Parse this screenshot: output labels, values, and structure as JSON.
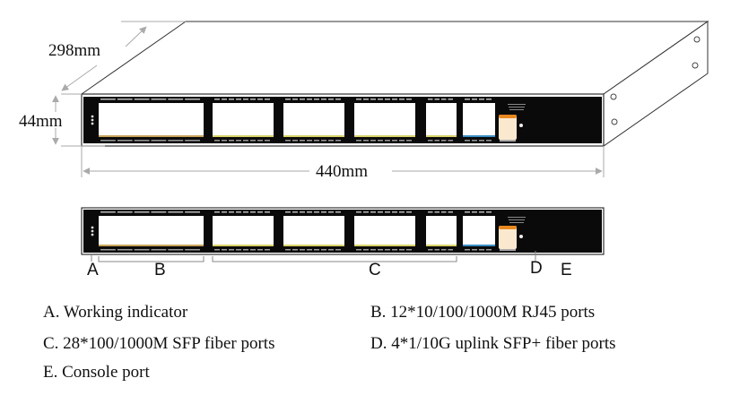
{
  "dimensions": {
    "depth": "298mm",
    "height": "44mm",
    "width": "440mm"
  },
  "callouts": [
    "A",
    "B",
    "C",
    "D",
    "E"
  ],
  "legend": [
    {
      "key": "A",
      "text": "A. Working indicator"
    },
    {
      "key": "B",
      "text": "B. 12*10/100/1000M RJ45 ports"
    },
    {
      "key": "C",
      "text": "C. 28*100/1000M SFP fiber ports"
    },
    {
      "key": "D",
      "text": "D. 4*1/10G uplink SFP+ fiber ports"
    },
    {
      "key": "E",
      "text": "E. Console port"
    }
  ],
  "colors": {
    "panel": "#0a0a0a",
    "sfp_strip": "#d9d36a",
    "uplink_strip": "#3a8fc4",
    "console": "#e8891f",
    "rj45_strip": "#c8a45a"
  }
}
